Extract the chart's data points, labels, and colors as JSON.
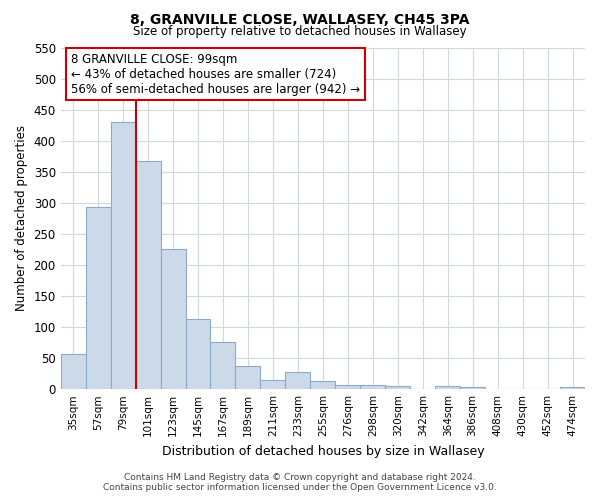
{
  "title": "8, GRANVILLE CLOSE, WALLASEY, CH45 3PA",
  "subtitle": "Size of property relative to detached houses in Wallasey",
  "xlabel": "Distribution of detached houses by size in Wallasey",
  "ylabel": "Number of detached properties",
  "bar_labels": [
    "35sqm",
    "57sqm",
    "79sqm",
    "101sqm",
    "123sqm",
    "145sqm",
    "167sqm",
    "189sqm",
    "211sqm",
    "233sqm",
    "255sqm",
    "276sqm",
    "298sqm",
    "320sqm",
    "342sqm",
    "364sqm",
    "386sqm",
    "408sqm",
    "430sqm",
    "452sqm",
    "474sqm"
  ],
  "bar_values": [
    57,
    293,
    430,
    368,
    226,
    113,
    76,
    38,
    14,
    28,
    13,
    7,
    7,
    5,
    0,
    5,
    4,
    0,
    0,
    0,
    4
  ],
  "bar_color": "#ccd9e8",
  "bar_edge_color": "#8aabcc",
  "vline_x_idx": 3,
  "vline_color": "#cc0000",
  "annotation_title": "8 GRANVILLE CLOSE: 99sqm",
  "annotation_line1": "← 43% of detached houses are smaller (724)",
  "annotation_line2": "56% of semi-detached houses are larger (942) →",
  "annotation_box_facecolor": "#ffffff",
  "annotation_box_edgecolor": "#cc0000",
  "ylim": [
    0,
    550
  ],
  "yticks": [
    0,
    50,
    100,
    150,
    200,
    250,
    300,
    350,
    400,
    450,
    500,
    550
  ],
  "footer1": "Contains HM Land Registry data © Crown copyright and database right 2024.",
  "footer2": "Contains public sector information licensed under the Open Government Licence v3.0.",
  "bg_color": "#ffffff",
  "plot_bg_color": "#ffffff",
  "grid_color": "#d0d8e0"
}
